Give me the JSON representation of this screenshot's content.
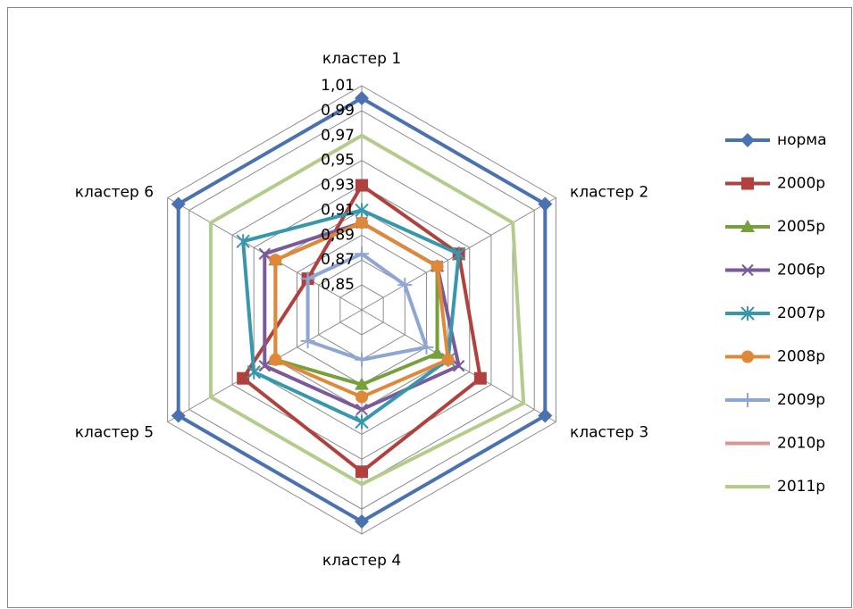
{
  "chart_data": {
    "type": "radar",
    "categories": [
      "кластер 1",
      "кластер 2",
      "кластер 3",
      "кластер 4",
      "кластер 5",
      "кластер 6"
    ],
    "ylim": [
      0.83,
      1.01
    ],
    "yticks": [
      {
        "value": 0.85,
        "label": "0,85"
      },
      {
        "value": 0.87,
        "label": "0,87"
      },
      {
        "value": 0.89,
        "label": "0,89"
      },
      {
        "value": 0.91,
        "label": "0,91"
      },
      {
        "value": 0.93,
        "label": "0,93"
      },
      {
        "value": 0.95,
        "label": "0,95"
      },
      {
        "value": 0.97,
        "label": "0,97"
      },
      {
        "value": 0.99,
        "label": "0,99"
      },
      {
        "value": 1.01,
        "label": "1,01"
      }
    ],
    "grid": true,
    "legend": "right",
    "series": [
      {
        "name": "норма",
        "color": "#4a72b0",
        "marker": "diamond",
        "values": [
          1.0,
          1.0,
          1.0,
          1.0,
          1.0,
          1.0
        ]
      },
      {
        "name": "2000р",
        "color": "#b0413e",
        "marker": "square",
        "values": [
          0.93,
          0.92,
          0.94,
          0.96,
          0.94,
          0.88
        ]
      },
      {
        "name": "2005р",
        "color": "#77a03c",
        "marker": "triangle",
        "values": [
          0.9,
          0.9,
          0.9,
          0.89,
          0.91,
          0.91
        ]
      },
      {
        "name": "2006р",
        "color": "#7b5a9a",
        "marker": "x",
        "values": [
          0.9,
          0.9,
          0.92,
          0.91,
          0.92,
          0.92
        ]
      },
      {
        "name": "2007р",
        "color": "#3797ad",
        "marker": "star",
        "values": [
          0.91,
          0.92,
          0.91,
          0.92,
          0.93,
          0.94
        ]
      },
      {
        "name": "2008р",
        "color": "#e0883a",
        "marker": "circle",
        "values": [
          0.9,
          0.9,
          0.91,
          0.9,
          0.91,
          0.91
        ]
      },
      {
        "name": "2009р",
        "color": "#8ea6d4",
        "marker": "plus",
        "values": [
          0.875,
          0.87,
          0.89,
          0.87,
          0.88,
          0.88
        ]
      },
      {
        "name": "2010р",
        "color": "#d99694",
        "marker": "none",
        "values": [
          null,
          null,
          null,
          null,
          null,
          null
        ]
      },
      {
        "name": "2011р",
        "color": "#b3cc8c",
        "marker": "none",
        "values": [
          0.97,
          0.97,
          0.98,
          0.97,
          0.97,
          0.97
        ]
      }
    ]
  }
}
